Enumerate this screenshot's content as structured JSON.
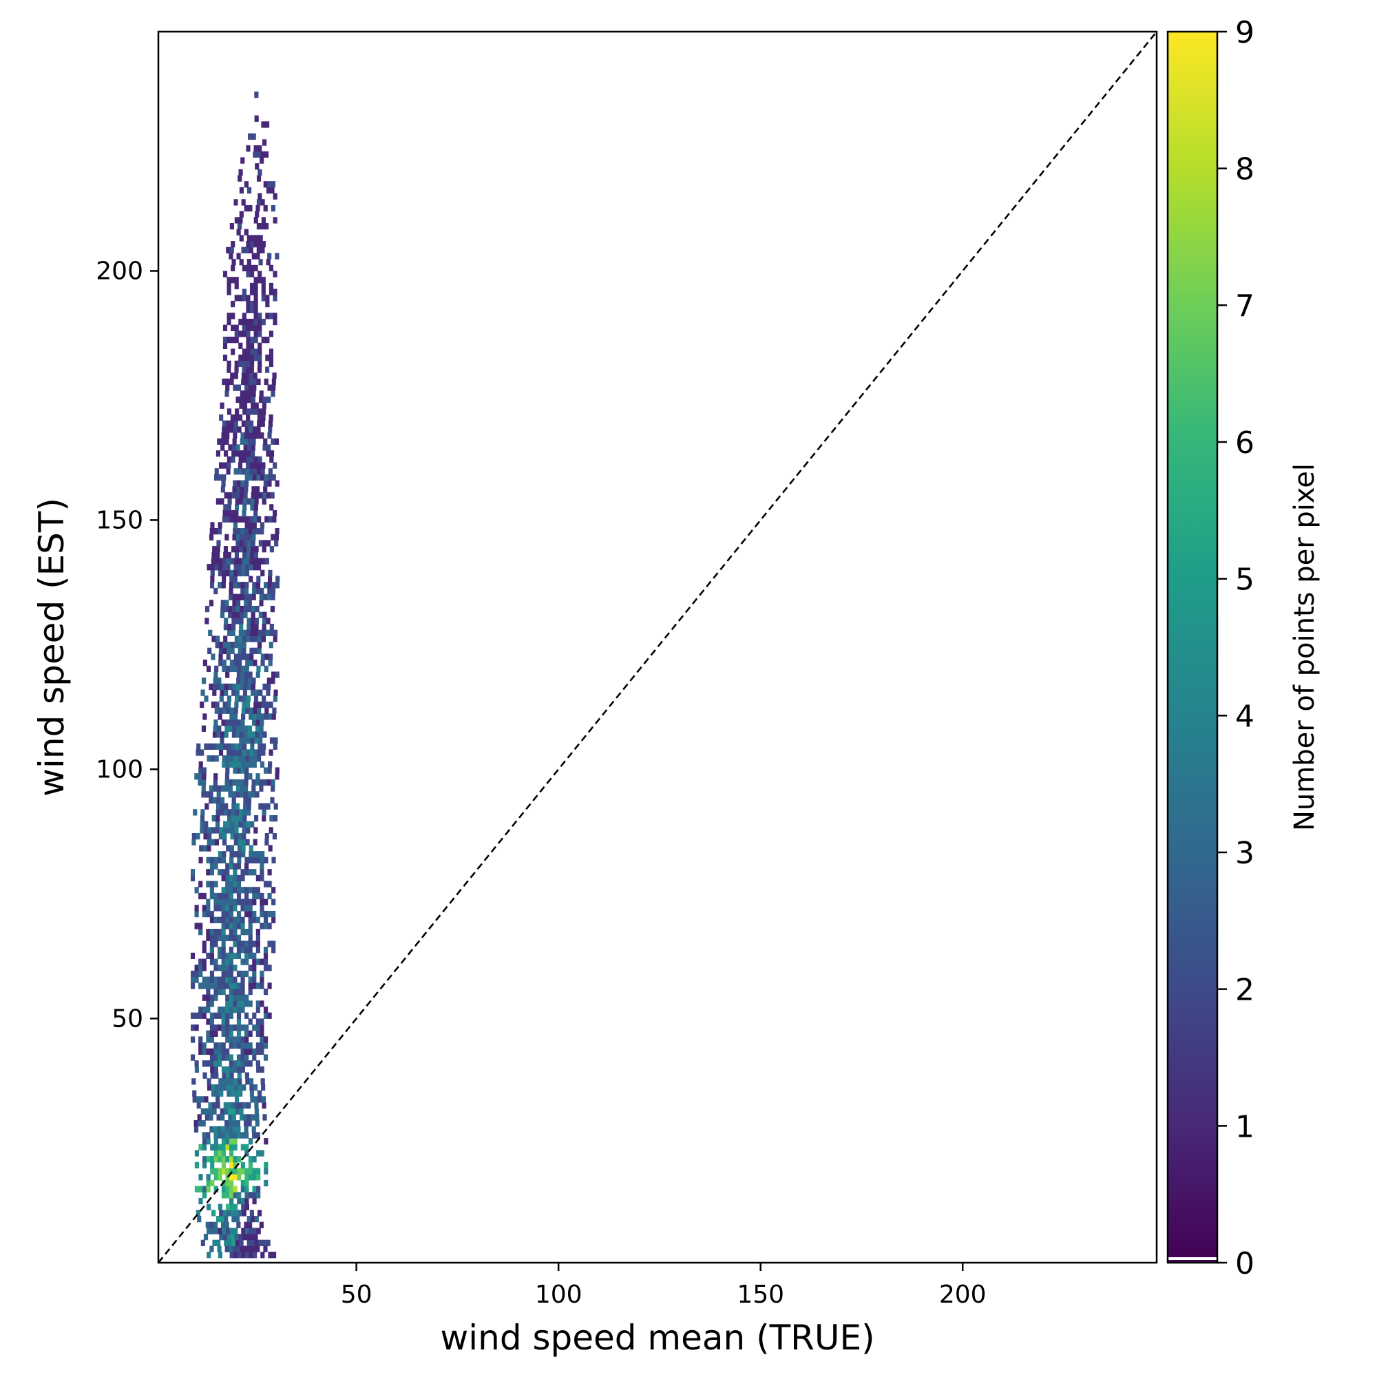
{
  "chart_data": {
    "type": "heatmap",
    "subtype": "2d-density-scatter",
    "title": "",
    "xlabel": "wind speed mean (TRUE)",
    "ylabel": "wind speed (EST)",
    "xlim": [
      1,
      248
    ],
    "ylim": [
      1,
      248
    ],
    "x_ticks": [
      50,
      100,
      150,
      200
    ],
    "y_ticks": [
      50,
      100,
      150,
      200
    ],
    "reference_line": {
      "style": "dashed",
      "color": "#000000",
      "from": [
        1,
        1
      ],
      "to": [
        248,
        248
      ]
    },
    "colorbar": {
      "label": "Number of points per pixel",
      "min": 0,
      "max": 9,
      "ticks": [
        0,
        1,
        2,
        3,
        4,
        5,
        6,
        7,
        8,
        9
      ],
      "colormap": "viridis"
    },
    "density_profile": {
      "x_range_at_y": [
        {
          "y": 2,
          "x_min": 12,
          "x_max": 31,
          "mean_count": 1
        },
        {
          "y": 12,
          "x_min": 10,
          "x_max": 25,
          "mean_count": 3
        },
        {
          "y": 18,
          "x_min": 10,
          "x_max": 28,
          "mean_count": 7
        },
        {
          "y": 25,
          "x_min": 10,
          "x_max": 28,
          "mean_count": 4
        },
        {
          "y": 40,
          "x_min": 9,
          "x_max": 27,
          "mean_count": 3
        },
        {
          "y": 60,
          "x_min": 9,
          "x_max": 29,
          "mean_count": 3
        },
        {
          "y": 80,
          "x_min": 9,
          "x_max": 29,
          "mean_count": 3
        },
        {
          "y": 100,
          "x_min": 10,
          "x_max": 30,
          "mean_count": 3
        },
        {
          "y": 120,
          "x_min": 12,
          "x_max": 30,
          "mean_count": 3
        },
        {
          "y": 140,
          "x_min": 13,
          "x_max": 30,
          "mean_count": 2
        },
        {
          "y": 160,
          "x_min": 15,
          "x_max": 30,
          "mean_count": 2
        },
        {
          "y": 180,
          "x_min": 17,
          "x_max": 30,
          "mean_count": 1
        },
        {
          "y": 200,
          "x_min": 17,
          "x_max": 30,
          "mean_count": 1
        },
        {
          "y": 220,
          "x_min": 21,
          "x_max": 30,
          "mean_count": 1
        },
        {
          "y": 236,
          "x_min": 24,
          "x_max": 26,
          "mean_count": 1
        }
      ]
    }
  }
}
